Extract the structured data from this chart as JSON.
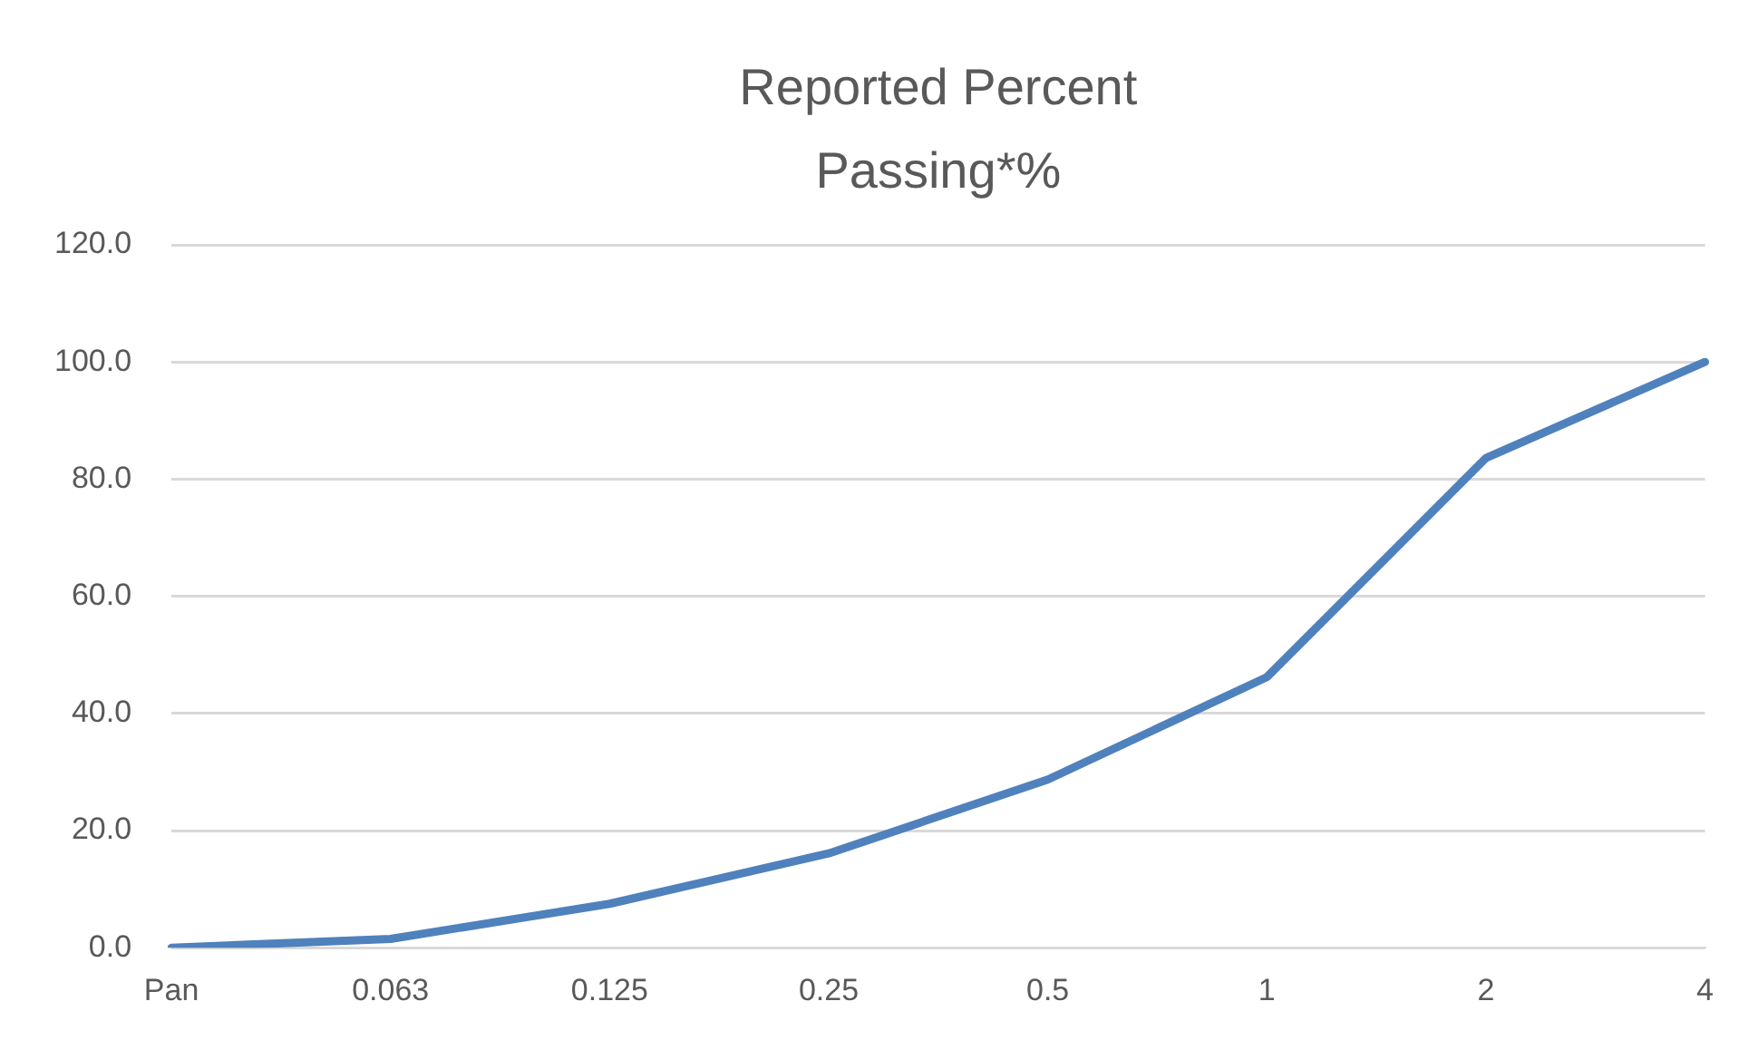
{
  "chart_data": {
    "type": "line",
    "title": "Reported Percent Passing*%",
    "categories": [
      "Pan",
      "0.063",
      "0.125",
      "0.25",
      "0.5",
      "1",
      "2",
      "4"
    ],
    "series": [
      {
        "color": "#4f81bd",
        "values": [
          0,
          1.5,
          7.5,
          16.1,
          28.7,
          46.2,
          83.6,
          100
        ]
      }
    ],
    "ylim": [
      0,
      120
    ],
    "yticks": [
      {
        "value": 0,
        "label": "0.0"
      },
      {
        "value": 20,
        "label": "20.0"
      },
      {
        "value": 40,
        "label": "40.0"
      },
      {
        "value": 60,
        "label": "60.0"
      },
      {
        "value": 80,
        "label": "80.0"
      },
      {
        "value": 100,
        "label": "100.0"
      },
      {
        "value": 120,
        "label": "120.0"
      }
    ],
    "grid": "y",
    "legend": false,
    "marker": "none",
    "line_style": "solid"
  }
}
